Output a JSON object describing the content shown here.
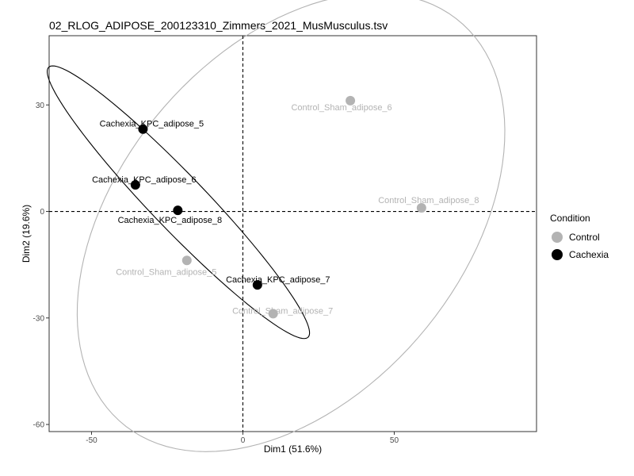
{
  "chart_data": {
    "type": "scatter",
    "title": "02_RLOG_ADIPOSE_200123310_Zimmers_2021_MusMusculus.tsv",
    "xlabel": "Dim1 (51.6%)",
    "ylabel": "Dim2 (19.6%)",
    "xlim": [
      -64,
      97
    ],
    "ylim": [
      -62,
      49.5
    ],
    "xticks": [
      -50,
      0,
      50
    ],
    "yticks": [
      -60,
      -30,
      0,
      30
    ],
    "reference_lines": {
      "x": 0,
      "y": 0,
      "style": "dashed"
    },
    "grid": false,
    "legend": {
      "title": "Condition",
      "placement": "right",
      "entries": [
        {
          "name": "Control",
          "color": "#b3b3b3"
        },
        {
          "name": "Cachexia",
          "color": "#000000"
        }
      ]
    },
    "series": [
      {
        "name": "Control",
        "color": "#b3b3b3",
        "points": [
          {
            "label": "Control_Sham_adipose_6",
            "x": 35.5,
            "y": 31.2
          },
          {
            "label": "Control_Sham_adipose_8",
            "x": 59.0,
            "y": 1.0
          },
          {
            "label": "Control_Sham_adipose_5",
            "x": -18.5,
            "y": -13.8
          },
          {
            "label": "Control_Sham_adipose_7",
            "x": 10.0,
            "y": -28.8
          }
        ],
        "ellipse": {
          "center": [
            15.9,
            -3.1
          ],
          "semi_major": 80.2,
          "semi_minor": 52.2,
          "angle_deg": 38.6
        }
      },
      {
        "name": "Cachexia",
        "color": "#000000",
        "points": [
          {
            "label": "Cachexia_KPC_adipose_5",
            "x": -33.0,
            "y": 23.2
          },
          {
            "label": "Cachexia_KPC_adipose_6",
            "x": -35.5,
            "y": 7.5
          },
          {
            "label": "Cachexia_KPC_adipose_8",
            "x": -21.5,
            "y": 0.3
          },
          {
            "label": "Cachexia_KPC_adipose_7",
            "x": 4.8,
            "y": -20.7
          }
        ],
        "ellipse": {
          "center": [
            -21.3,
            2.6
          ],
          "semi_major": 57.3,
          "semi_minor": 8.3,
          "angle_deg": -41.4
        }
      }
    ]
  }
}
